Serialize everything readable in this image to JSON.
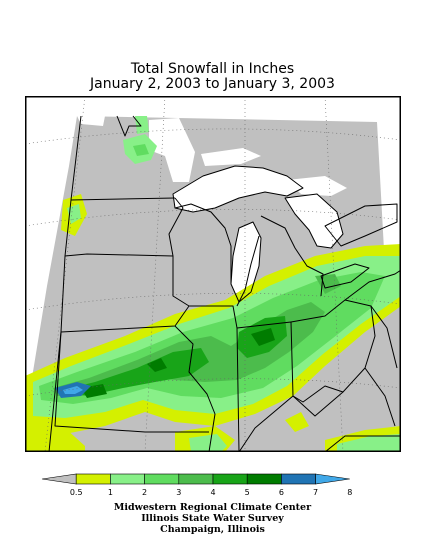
{
  "title": "Total Snowfall in Inches",
  "subtitle": "January 2, 2003 to January 3, 2003",
  "legend": {
    "ticks": [
      "0.5",
      "1",
      "2",
      "3",
      "4",
      "5",
      "6",
      "7",
      "8"
    ],
    "colors": [
      "#c0c0c0",
      "#d4f000",
      "#88f088",
      "#60dc60",
      "#4cbc4c",
      "#18a418",
      "#007c00",
      "#2074b4",
      "#40a8e8"
    ]
  },
  "credits": {
    "line1": "Midwestern Regional Climate Center",
    "line2": "Illinois State Water Survey",
    "line3": "Champaign, Illinois"
  }
}
